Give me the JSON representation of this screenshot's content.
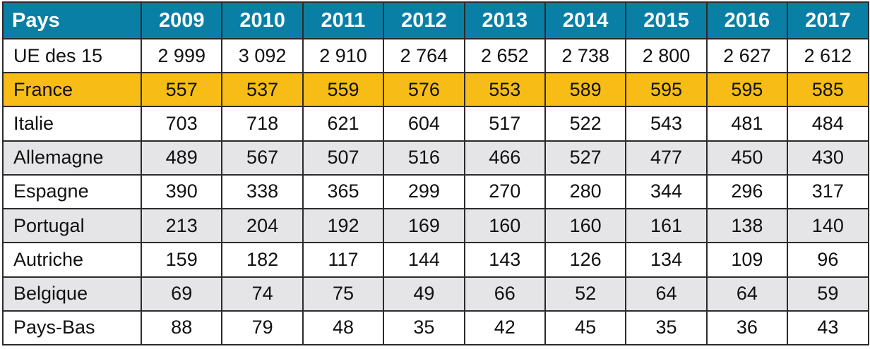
{
  "colors": {
    "header_bg": "#0a7fa5",
    "highlight_bg": "#f7bd16",
    "alt_row_bg": "#e5e5e8"
  },
  "table": {
    "headers": [
      "Pays",
      "2009",
      "2010",
      "2011",
      "2012",
      "2013",
      "2014",
      "2015",
      "2016",
      "2017"
    ],
    "rows": [
      {
        "country": "UE des 15",
        "values": [
          "2 999",
          "3 092",
          "2 910",
          "2 764",
          "2 652",
          "2 738",
          "2 800",
          "2 627",
          "2 612"
        ]
      },
      {
        "country": "France",
        "values": [
          "557",
          "537",
          "559",
          "576",
          "553",
          "589",
          "595",
          "595",
          "585"
        ]
      },
      {
        "country": "Italie",
        "values": [
          "703",
          "718",
          "621",
          "604",
          "517",
          "522",
          "543",
          "481",
          "484"
        ]
      },
      {
        "country": "Allemagne",
        "values": [
          "489",
          "567",
          "507",
          "516",
          "466",
          "527",
          "477",
          "450",
          "430"
        ]
      },
      {
        "country": "Espagne",
        "values": [
          "390",
          "338",
          "365",
          "299",
          "270",
          "280",
          "344",
          "296",
          "317"
        ]
      },
      {
        "country": "Portugal",
        "values": [
          "213",
          "204",
          "192",
          "169",
          "160",
          "160",
          "161",
          "138",
          "140"
        ]
      },
      {
        "country": "Autriche",
        "values": [
          "159",
          "182",
          "117",
          "144",
          "143",
          "126",
          "134",
          "109",
          "96"
        ]
      },
      {
        "country": "Belgique",
        "values": [
          "69",
          "74",
          "75",
          "49",
          "66",
          "52",
          "64",
          "64",
          "59"
        ]
      },
      {
        "country": "Pays-Bas",
        "values": [
          "88",
          "79",
          "48",
          "35",
          "42",
          "45",
          "35",
          "36",
          "43"
        ]
      }
    ]
  }
}
